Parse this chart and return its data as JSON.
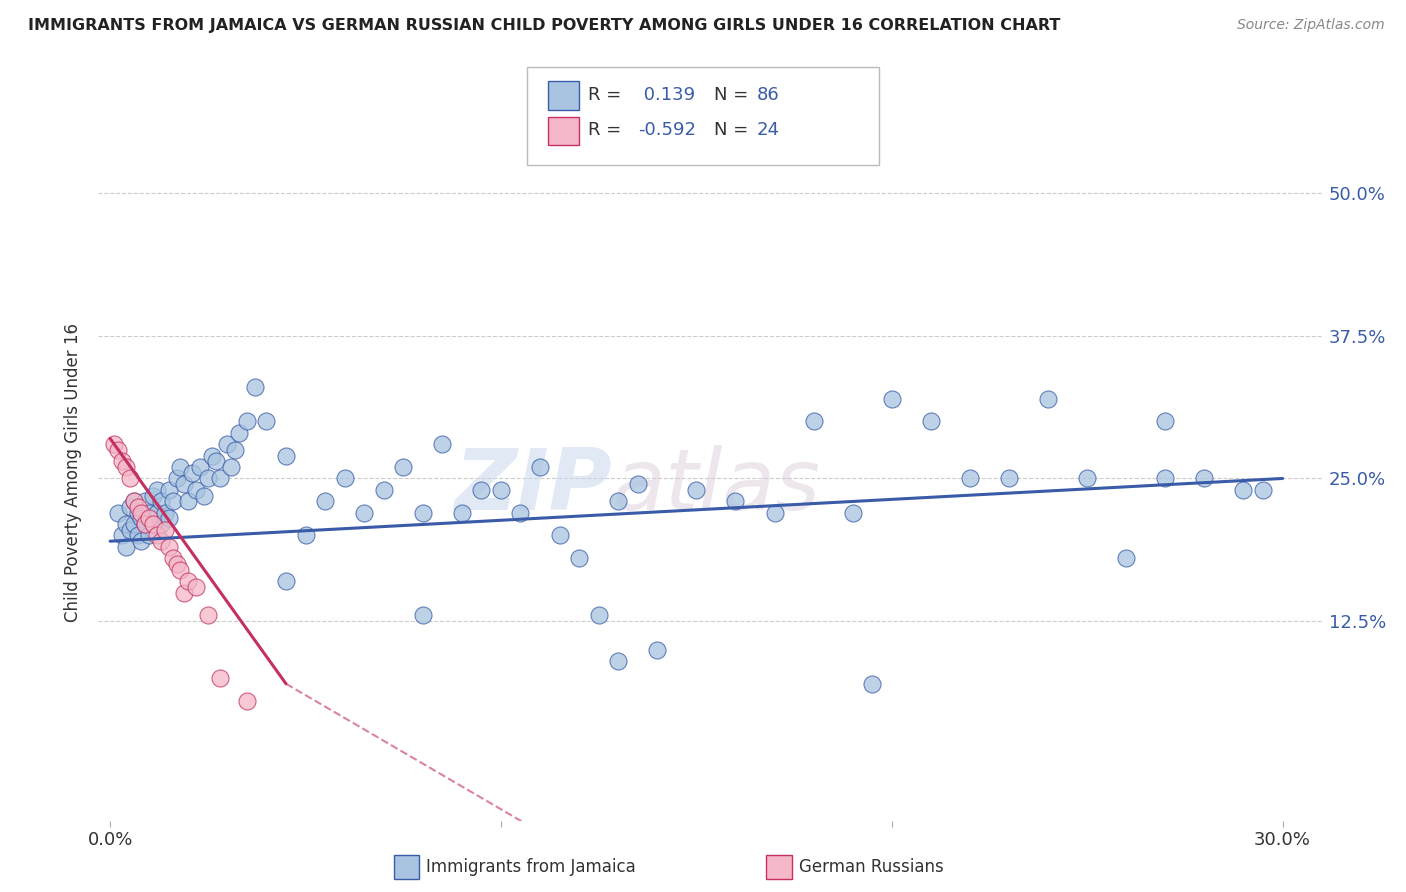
{
  "title": "IMMIGRANTS FROM JAMAICA VS GERMAN RUSSIAN CHILD POVERTY AMONG GIRLS UNDER 16 CORRELATION CHART",
  "source": "Source: ZipAtlas.com",
  "ylabel": "Child Poverty Among Girls Under 16",
  "blue_color": "#a8c4e0",
  "pink_color": "#f4b8c8",
  "blue_line_color": "#3a5ca8",
  "pink_line_color": "#c43060",
  "watermark_zip": "ZIP",
  "watermark_atlas": "atlas",
  "blue_points_x": [
    0.2,
    0.3,
    0.4,
    0.4,
    0.5,
    0.5,
    0.6,
    0.6,
    0.7,
    0.7,
    0.8,
    0.8,
    0.9,
    0.9,
    1.0,
    1.0,
    1.1,
    1.1,
    1.2,
    1.2,
    1.3,
    1.3,
    1.4,
    1.5,
    1.5,
    1.6,
    1.7,
    1.8,
    1.9,
    2.0,
    2.1,
    2.2,
    2.3,
    2.4,
    2.5,
    2.6,
    2.7,
    2.8,
    3.0,
    3.1,
    3.2,
    3.3,
    3.5,
    3.7,
    4.0,
    4.5,
    5.0,
    5.5,
    6.0,
    6.5,
    7.0,
    7.5,
    8.0,
    8.5,
    9.0,
    9.5,
    10.0,
    10.5,
    11.0,
    11.5,
    12.0,
    12.5,
    13.0,
    13.5,
    14.0,
    15.0,
    16.0,
    17.0,
    18.0,
    19.0,
    20.0,
    21.0,
    22.0,
    23.0,
    24.0,
    25.0,
    26.0,
    27.0,
    28.0,
    29.0,
    4.5,
    8.0,
    13.0,
    19.5,
    27.0,
    29.5
  ],
  "blue_points_y": [
    22.0,
    20.0,
    21.0,
    19.0,
    22.5,
    20.5,
    21.0,
    23.0,
    20.0,
    22.0,
    21.5,
    19.5,
    23.0,
    21.0,
    22.0,
    20.0,
    23.5,
    21.0,
    24.0,
    22.0,
    21.0,
    23.0,
    22.0,
    24.0,
    21.5,
    23.0,
    25.0,
    26.0,
    24.5,
    23.0,
    25.5,
    24.0,
    26.0,
    23.5,
    25.0,
    27.0,
    26.5,
    25.0,
    28.0,
    26.0,
    27.5,
    29.0,
    30.0,
    33.0,
    30.0,
    27.0,
    20.0,
    23.0,
    25.0,
    22.0,
    24.0,
    26.0,
    22.0,
    28.0,
    22.0,
    24.0,
    24.0,
    22.0,
    26.0,
    20.0,
    18.0,
    13.0,
    23.0,
    24.5,
    10.0,
    24.0,
    23.0,
    22.0,
    30.0,
    22.0,
    32.0,
    30.0,
    25.0,
    25.0,
    32.0,
    25.0,
    18.0,
    30.0,
    25.0,
    24.0,
    16.0,
    13.0,
    9.0,
    7.0,
    25.0,
    24.0
  ],
  "pink_points_x": [
    0.1,
    0.2,
    0.3,
    0.4,
    0.5,
    0.6,
    0.7,
    0.8,
    0.9,
    1.0,
    1.1,
    1.2,
    1.3,
    1.4,
    1.5,
    1.6,
    1.7,
    1.8,
    1.9,
    2.0,
    2.2,
    2.5,
    2.8,
    3.5
  ],
  "pink_points_y": [
    28.0,
    27.5,
    26.5,
    26.0,
    25.0,
    23.0,
    22.5,
    22.0,
    21.0,
    21.5,
    21.0,
    20.0,
    19.5,
    20.5,
    19.0,
    18.0,
    17.5,
    17.0,
    15.0,
    16.0,
    15.5,
    13.0,
    7.5,
    5.5
  ],
  "blue_trend": [
    0.0,
    30.0,
    19.5,
    25.0
  ],
  "pink_trend_solid": [
    0.0,
    4.5,
    28.5,
    7.0
  ],
  "pink_trend_dashed": [
    4.5,
    12.0,
    7.0,
    -8.0
  ],
  "xlim": [
    -0.3,
    31.0
  ],
  "ylim": [
    -5.0,
    56.0
  ],
  "yticks": [
    12.5,
    25.0,
    37.5,
    50.0
  ],
  "ytick_labels": [
    "12.5%",
    "25.0%",
    "37.5%",
    "50.0%"
  ],
  "xtick_positions": [
    0.0,
    10.0,
    20.0,
    30.0
  ],
  "xtick_labels": [
    "0.0%",
    "",
    "",
    "30.0%"
  ]
}
